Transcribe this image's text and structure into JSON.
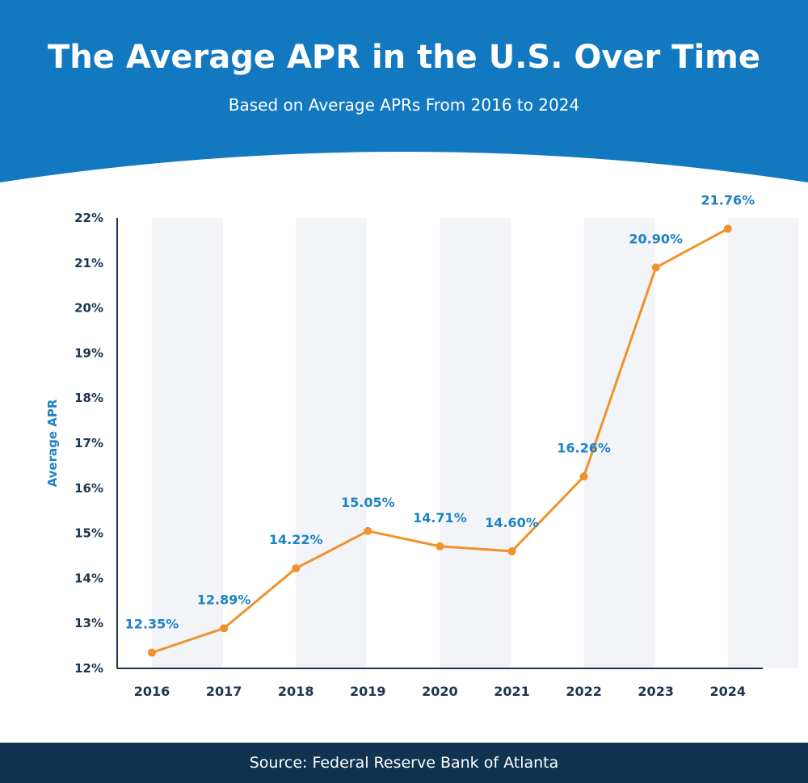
{
  "header": {
    "title": "The Average APR in the U.S. Over Time",
    "subtitle": "Based on Average APRs From 2016 to 2024"
  },
  "footer": {
    "source": "Source: Federal Reserve Bank of Atlanta"
  },
  "colors": {
    "header_bg": "#1279c1",
    "footer_bg": "#0f3350",
    "line": "#f0922b",
    "band": "#f2f4f8",
    "label": "#1f82c4",
    "axis_text": "#1c3550"
  },
  "chart_data": {
    "type": "line",
    "title": "The Average APR in the U.S. Over Time",
    "subtitle": "Based on Average APRs From 2016 to 2024",
    "xlabel": "",
    "ylabel": "Average APR",
    "categories": [
      "2016",
      "2017",
      "2018",
      "2019",
      "2020",
      "2021",
      "2022",
      "2023",
      "2024"
    ],
    "series": [
      {
        "values": [
          12.35,
          12.89,
          14.22,
          15.05,
          14.71,
          14.6,
          16.26,
          20.9,
          21.76
        ],
        "labels": [
          "12.35%",
          "12.89%",
          "14.22%",
          "15.05%",
          "14.71%",
          "14.60%",
          "16.26%",
          "20.90%",
          "21.76%"
        ]
      }
    ],
    "ylim": [
      12,
      22
    ],
    "yticks": [
      12,
      13,
      14,
      15,
      16,
      17,
      18,
      19,
      20,
      21,
      22
    ],
    "ytick_labels": [
      "12%",
      "13%",
      "14%",
      "15%",
      "16%",
      "17%",
      "18%",
      "19%",
      "20%",
      "21%",
      "22%"
    ],
    "grid": false,
    "legend": "none",
    "alternating_bands": true
  }
}
